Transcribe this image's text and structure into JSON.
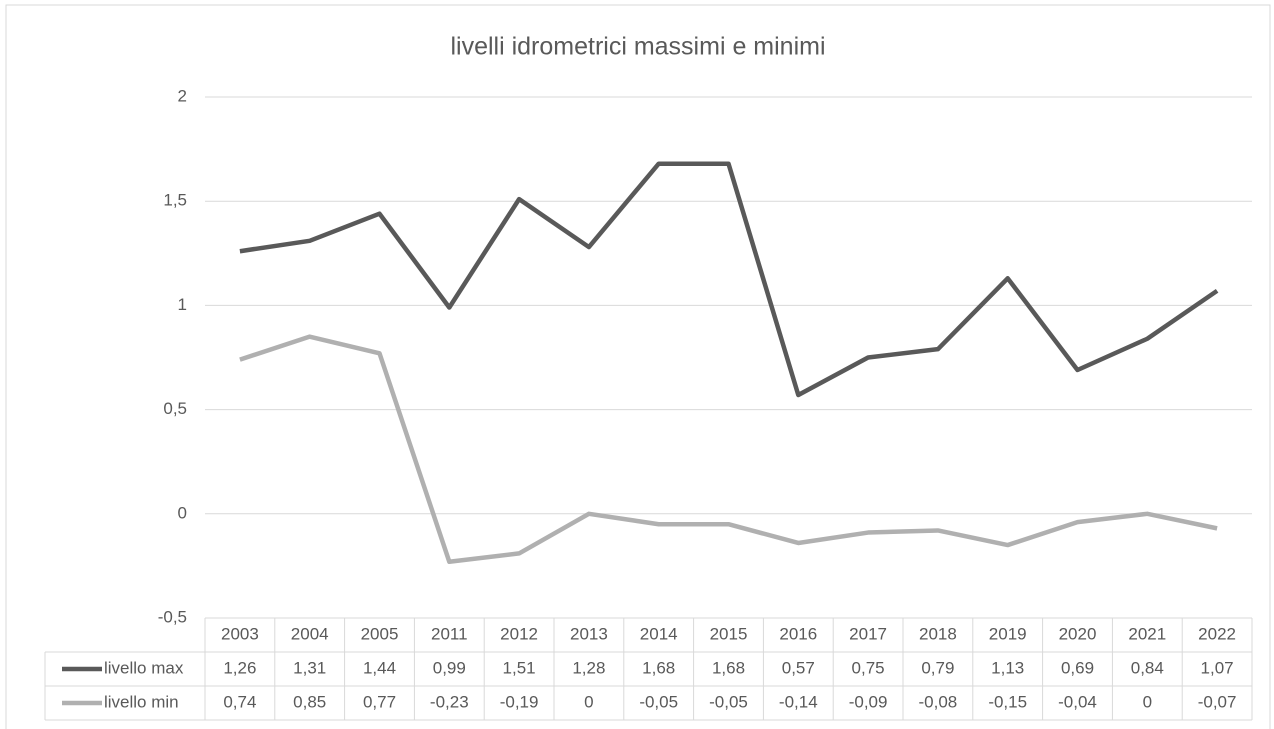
{
  "chart_data": {
    "type": "line",
    "title": "livelli idrometrici massimi e minimi",
    "categories": [
      "2003",
      "2004",
      "2005",
      "2011",
      "2012",
      "2013",
      "2014",
      "2015",
      "2016",
      "2017",
      "2018",
      "2019",
      "2020",
      "2021",
      "2022"
    ],
    "series": [
      {
        "name": "livello max",
        "color": "#595959",
        "values": [
          1.26,
          1.31,
          1.44,
          0.99,
          1.51,
          1.28,
          1.68,
          1.68,
          0.57,
          0.75,
          0.79,
          1.13,
          0.69,
          0.84,
          1.07
        ],
        "value_labels": [
          "1,26",
          "1,31",
          "1,44",
          "0,99",
          "1,51",
          "1,28",
          "1,68",
          "1,68",
          "0,57",
          "0,75",
          "0,79",
          "1,13",
          "0,69",
          "0,84",
          "1,07"
        ]
      },
      {
        "name": "livello min",
        "color": "#b0b0b0",
        "values": [
          0.74,
          0.85,
          0.77,
          -0.23,
          -0.19,
          0,
          -0.05,
          -0.05,
          -0.14,
          -0.09,
          -0.08,
          -0.15,
          -0.04,
          0,
          -0.07
        ],
        "value_labels": [
          "0,74",
          "0,85",
          "0,77",
          "-0,23",
          "-0,19",
          "0",
          "-0,05",
          "-0,05",
          "-0,14",
          "-0,09",
          "-0,08",
          "-0,15",
          "-0,04",
          "0",
          "-0,07"
        ]
      }
    ],
    "ylim": [
      -0.5,
      2
    ],
    "yticks": [
      {
        "value": -0.5,
        "label": "-0,5"
      },
      0,
      {
        "value": 0.5,
        "label": "0,5"
      },
      1,
      {
        "value": 1.5,
        "label": "1,5"
      },
      2
    ],
    "grid": true,
    "data_table": true
  }
}
